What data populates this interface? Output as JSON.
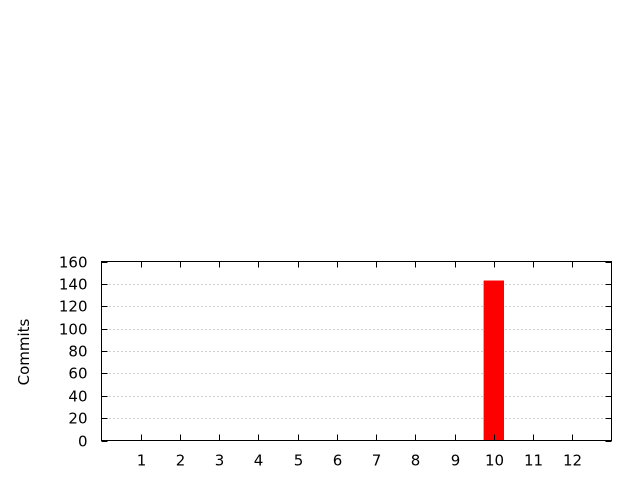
{
  "chart_data": {
    "type": "bar",
    "categories": [
      "1",
      "2",
      "3",
      "4",
      "5",
      "6",
      "7",
      "8",
      "9",
      "10",
      "11",
      "12"
    ],
    "values": [
      0,
      0,
      0,
      0,
      0,
      0,
      0,
      0,
      0,
      143,
      0,
      0
    ],
    "ylabel": "Commits",
    "xlabel": "",
    "ylim": [
      0,
      160
    ],
    "yticks": [
      0,
      20,
      40,
      60,
      80,
      100,
      120,
      140,
      160
    ],
    "grid": true,
    "bar_color": "#ff0000"
  }
}
